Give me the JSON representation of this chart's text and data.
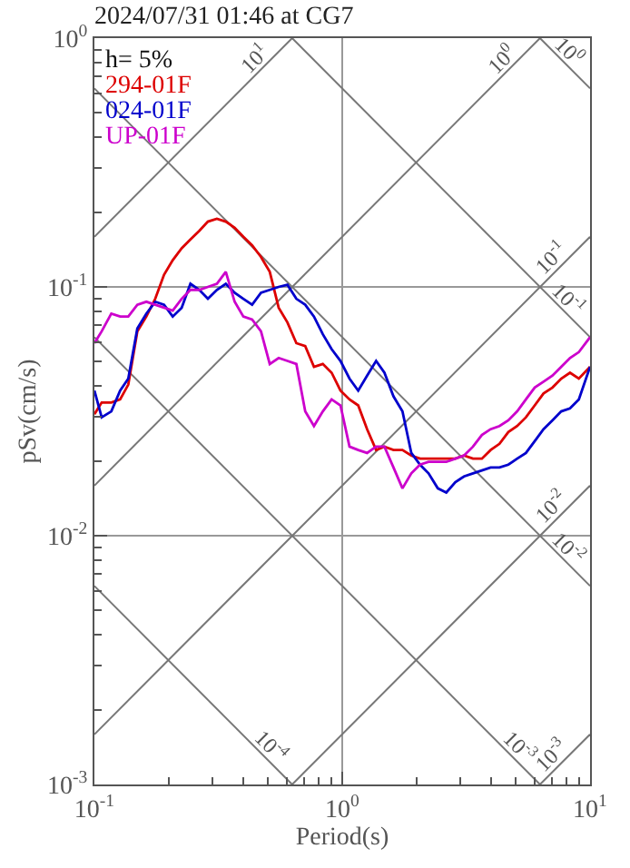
{
  "chart_data": {
    "type": "line",
    "title": "2024/07/31 01:46 at CG7",
    "xlabel": "Period(s)",
    "ylabel": "pSv(cm/s)",
    "annotations": [
      "h= 5%"
    ],
    "log": "xy",
    "grid": true,
    "legend": "top left",
    "xlim": [
      0.1,
      10
    ],
    "ylim": [
      0.001,
      1
    ],
    "xticks": [
      {
        "value": 0.1,
        "label": "10$^{-1}$"
      },
      {
        "value": 0.2,
        "label": null
      },
      {
        "value": 0.3,
        "label": null
      },
      {
        "value": 0.4,
        "label": null
      },
      {
        "value": 0.5,
        "label": null
      },
      {
        "value": 0.6,
        "label": null
      },
      {
        "value": 0.7,
        "label": null
      },
      {
        "value": 0.8,
        "label": null
      },
      {
        "value": 0.9,
        "label": null
      },
      {
        "value": 1,
        "label": "10$^{0}$"
      },
      {
        "value": 2,
        "label": null
      },
      {
        "value": 3,
        "label": null
      },
      {
        "value": 4,
        "label": null
      },
      {
        "value": 5,
        "label": null
      },
      {
        "value": 6,
        "label": null
      },
      {
        "value": 7,
        "label": null
      },
      {
        "value": 8,
        "label": null
      },
      {
        "value": 9,
        "label": null
      },
      {
        "value": 10,
        "label": "10$^{1}$"
      }
    ],
    "yticks": [
      {
        "value": 0.001,
        "label": "10$^{-3}$"
      },
      {
        "value": 0.002,
        "label": null
      },
      {
        "value": 0.003,
        "label": null
      },
      {
        "value": 0.004,
        "label": null
      },
      {
        "value": 0.005,
        "label": null
      },
      {
        "value": 0.006,
        "label": null
      },
      {
        "value": 0.007,
        "label": null
      },
      {
        "value": 0.008,
        "label": null
      },
      {
        "value": 0.009,
        "label": null
      },
      {
        "value": 0.01,
        "label": "10$^{-2}$"
      },
      {
        "value": 0.02,
        "label": null
      },
      {
        "value": 0.03,
        "label": null
      },
      {
        "value": 0.04,
        "label": null
      },
      {
        "value": 0.05,
        "label": null
      },
      {
        "value": 0.06,
        "label": null
      },
      {
        "value": 0.07,
        "label": null
      },
      {
        "value": 0.08,
        "label": null
      },
      {
        "value": 0.09,
        "label": null
      },
      {
        "value": 0.1,
        "label": "10$^{-1}$"
      },
      {
        "value": 0.2,
        "label": null
      },
      {
        "value": 0.3,
        "label": null
      },
      {
        "value": 0.4,
        "label": null
      },
      {
        "value": 0.5,
        "label": null
      },
      {
        "value": 0.6,
        "label": null
      },
      {
        "value": 0.7,
        "label": null
      },
      {
        "value": 0.8,
        "label": null
      },
      {
        "value": 0.9,
        "label": null
      },
      {
        "value": 1,
        "label": "10$^{0}$"
      }
    ],
    "x": [
      0.1,
      0.107,
      0.117,
      0.127,
      0.137,
      0.149,
      0.162,
      0.176,
      0.191,
      0.207,
      0.225,
      0.244,
      0.265,
      0.287,
      0.312,
      0.339,
      0.368,
      0.399,
      0.433,
      0.47,
      0.51,
      0.554,
      0.601,
      0.653,
      0.709,
      0.769,
      0.835,
      0.906,
      0.984,
      1.07,
      1.16,
      1.26,
      1.37,
      1.48,
      1.61,
      1.75,
      1.9,
      2.06,
      2.23,
      2.43,
      2.63,
      2.86,
      3.1,
      3.37,
      3.66,
      3.97,
      4.31,
      4.68,
      5.08,
      5.51,
      5.98,
      6.49,
      7.05,
      7.65,
      8.3,
      9.01,
      10
    ],
    "series": [
      {
        "type": "line",
        "color": "#777777",
        "name": "10$^{1}$",
        "x": [
          0.1,
          0.628
        ],
        "values": [
          0.159,
          1
        ]
      },
      {
        "type": "line",
        "color": "#777777",
        "name": "10$^{0}$",
        "x": [
          0.1,
          6.28
        ],
        "values": [
          0.0159,
          1
        ]
      },
      {
        "type": "line",
        "color": "#777777",
        "name": "10$^{-1}$",
        "x": [
          0.1,
          10
        ],
        "values": [
          0.00159,
          0.159
        ]
      },
      {
        "type": "line",
        "color": "#777777",
        "name": "10$^{-2}$",
        "x": [
          0.628,
          10
        ],
        "values": [
          0.001,
          0.0159
        ]
      },
      {
        "type": "line",
        "color": "#777777",
        "name": "10$^{-3}$",
        "x": [
          6.28,
          10
        ],
        "values": [
          0.001,
          0.00159
        ]
      },
      {
        "type": "line",
        "color": "#777777",
        "name": "10$^{0}$",
        "x": [
          6.28,
          10
        ],
        "values": [
          1,
          0.628
        ]
      },
      {
        "type": "line",
        "color": "#777777",
        "name": "10$^{-1}$",
        "x": [
          0.628,
          10
        ],
        "values": [
          1,
          0.0628
        ]
      },
      {
        "type": "line",
        "color": "#777777",
        "name": "10$^{-2}$",
        "x": [
          0.1,
          10
        ],
        "values": [
          0.628,
          0.00628
        ]
      },
      {
        "type": "line",
        "color": "#777777",
        "name": "10$^{-3}$",
        "x": [
          0.1,
          6.28
        ],
        "values": [
          0.0628,
          0.001
        ]
      },
      {
        "type": "line",
        "color": "#777777",
        "name": "10$^{-4}$",
        "x": [
          0.1,
          0.628
        ],
        "values": [
          0.00628,
          0.001
        ]
      },
      {
        "name": "294-01F",
        "color": "#dd0000",
        "values": [
          0.0308,
          0.0343,
          0.0343,
          0.0353,
          0.0405,
          0.0663,
          0.076,
          0.0896,
          0.112,
          0.128,
          0.143,
          0.155,
          0.168,
          0.183,
          0.188,
          0.183,
          0.173,
          0.159,
          0.147,
          0.132,
          0.115,
          0.0825,
          0.072,
          0.0594,
          0.0578,
          0.0477,
          0.049,
          0.0452,
          0.0383,
          0.0353,
          0.0334,
          0.0268,
          0.0221,
          0.0228,
          0.0221,
          0.0221,
          0.021,
          0.0204,
          0.0204,
          0.0204,
          0.0204,
          0.0204,
          0.021,
          0.0204,
          0.0204,
          0.0221,
          0.0234,
          0.0261,
          0.0276,
          0.0299,
          0.0334,
          0.0373,
          0.0394,
          0.0428,
          0.0452,
          0.0428,
          0.0477
        ]
      },
      {
        "name": "024-01F",
        "color": "#0000cc",
        "values": [
          0.0383,
          0.0299,
          0.0316,
          0.0383,
          0.0428,
          0.0681,
          0.0781,
          0.0872,
          0.0848,
          0.076,
          0.0825,
          0.103,
          0.0973,
          0.0896,
          0.0973,
          0.103,
          0.0947,
          0.0896,
          0.0848,
          0.0947,
          0.0973,
          0.1,
          0.102,
          0.0896,
          0.0848,
          0.076,
          0.0645,
          0.0562,
          0.0504,
          0.0428,
          0.0383,
          0.044,
          0.0504,
          0.0452,
          0.0363,
          0.0316,
          0.0215,
          0.0193,
          0.0178,
          0.0155,
          0.0149,
          0.0164,
          0.0173,
          0.0178,
          0.0183,
          0.0188,
          0.0188,
          0.0193,
          0.0204,
          0.0215,
          0.024,
          0.0268,
          0.0291,
          0.0316,
          0.0325,
          0.0353,
          0.0477
        ]
      },
      {
        "name": "UP-01F",
        "color": "#cc00cc",
        "values": [
          0.0594,
          0.0663,
          0.0781,
          0.076,
          0.076,
          0.0848,
          0.0872,
          0.0848,
          0.0825,
          0.0803,
          0.0896,
          0.0973,
          0.0973,
          0.1,
          0.103,
          0.115,
          0.0872,
          0.076,
          0.074,
          0.0663,
          0.049,
          0.0518,
          0.0504,
          0.049,
          0.0316,
          0.0276,
          0.0316,
          0.0353,
          0.0334,
          0.0228,
          0.0221,
          0.0215,
          0.0228,
          0.0228,
          0.0188,
          0.0155,
          0.0178,
          0.0193,
          0.0198,
          0.0198,
          0.0198,
          0.0204,
          0.021,
          0.0228,
          0.0254,
          0.0268,
          0.0276,
          0.0291,
          0.0316,
          0.0353,
          0.0394,
          0.0416,
          0.044,
          0.0477,
          0.0518,
          0.0547,
          0.0628
        ]
      }
    ]
  }
}
